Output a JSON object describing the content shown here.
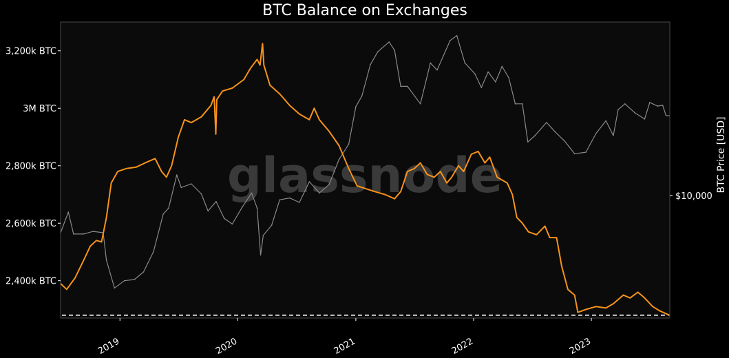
{
  "chart_data": {
    "type": "line",
    "title": "BTC Balance on Exchanges",
    "watermark": "glassnode",
    "colors": {
      "background": "#000000",
      "plot_background": "#0b0b0b",
      "frame": "#4a4a4a",
      "balance": "#f7931a",
      "price": "#8a8a8a",
      "reference_line": "#ffffff",
      "text": "#ffffff",
      "watermark": "#3a3a3a"
    },
    "x_axis": {
      "type": "date",
      "range": [
        "2018-07-01",
        "2023-09-01"
      ],
      "ticks": [
        {
          "label": "2019",
          "date": "2019-01-01"
        },
        {
          "label": "2020",
          "date": "2020-01-01"
        },
        {
          "label": "2021",
          "date": "2021-01-01"
        },
        {
          "label": "2022",
          "date": "2022-01-01"
        },
        {
          "label": "2023",
          "date": "2023-01-01"
        }
      ]
    },
    "y_left": {
      "unit": "BTC",
      "range": [
        2270000,
        3300000
      ],
      "ticks": [
        {
          "label": "2,400k BTC",
          "value": 2400000
        },
        {
          "label": "2,600k BTC",
          "value": 2600000
        },
        {
          "label": "2,800k BTC",
          "value": 2800000
        },
        {
          "label": "3M BTC",
          "value": 3000000
        },
        {
          "label": "3,200k BTC",
          "value": 3200000
        }
      ]
    },
    "y_right": {
      "label": "BTC Price [USD]",
      "scale": "log",
      "range": [
        2300,
        80000
      ],
      "ticks": [
        {
          "label": "$10,000",
          "value": 10000
        }
      ]
    },
    "reference_line": {
      "axis": "left",
      "value": 2280000,
      "style": "dashed"
    },
    "series": [
      {
        "key": "balance",
        "axis": "left",
        "points": [
          [
            "2018-07-01",
            2390000
          ],
          [
            "2018-07-20",
            2370000
          ],
          [
            "2018-08-15",
            2410000
          ],
          [
            "2018-09-10",
            2470000
          ],
          [
            "2018-10-01",
            2520000
          ],
          [
            "2018-10-20",
            2540000
          ],
          [
            "2018-11-05",
            2535000
          ],
          [
            "2018-11-20",
            2620000
          ],
          [
            "2018-12-05",
            2740000
          ],
          [
            "2018-12-25",
            2780000
          ],
          [
            "2019-01-20",
            2790000
          ],
          [
            "2019-02-20",
            2795000
          ],
          [
            "2019-03-20",
            2810000
          ],
          [
            "2019-04-20",
            2825000
          ],
          [
            "2019-05-10",
            2780000
          ],
          [
            "2019-05-25",
            2760000
          ],
          [
            "2019-06-10",
            2800000
          ],
          [
            "2019-07-01",
            2900000
          ],
          [
            "2019-07-20",
            2960000
          ],
          [
            "2019-08-10",
            2950000
          ],
          [
            "2019-09-10",
            2970000
          ],
          [
            "2019-10-10",
            3010000
          ],
          [
            "2019-10-20",
            3040000
          ],
          [
            "2019-10-25",
            2910000
          ],
          [
            "2019-10-28",
            3030000
          ],
          [
            "2019-11-15",
            3060000
          ],
          [
            "2019-12-15",
            3070000
          ],
          [
            "2020-01-20",
            3100000
          ],
          [
            "2020-02-10",
            3140000
          ],
          [
            "2020-03-01",
            3170000
          ],
          [
            "2020-03-10",
            3150000
          ],
          [
            "2020-03-18",
            3225000
          ],
          [
            "2020-03-22",
            3150000
          ],
          [
            "2020-04-10",
            3080000
          ],
          [
            "2020-05-10",
            3050000
          ],
          [
            "2020-06-10",
            3010000
          ],
          [
            "2020-07-10",
            2980000
          ],
          [
            "2020-08-10",
            2960000
          ],
          [
            "2020-08-25",
            3000000
          ],
          [
            "2020-09-10",
            2960000
          ],
          [
            "2020-10-10",
            2920000
          ],
          [
            "2020-11-10",
            2870000
          ],
          [
            "2020-12-10",
            2790000
          ],
          [
            "2021-01-05",
            2730000
          ],
          [
            "2021-02-01",
            2720000
          ],
          [
            "2021-03-01",
            2710000
          ],
          [
            "2021-04-01",
            2700000
          ],
          [
            "2021-05-01",
            2685000
          ],
          [
            "2021-05-20",
            2710000
          ],
          [
            "2021-06-10",
            2780000
          ],
          [
            "2021-07-01",
            2790000
          ],
          [
            "2021-07-20",
            2810000
          ],
          [
            "2021-08-10",
            2770000
          ],
          [
            "2021-09-01",
            2760000
          ],
          [
            "2021-09-20",
            2780000
          ],
          [
            "2021-10-10",
            2740000
          ],
          [
            "2021-10-25",
            2760000
          ],
          [
            "2021-11-15",
            2800000
          ],
          [
            "2021-12-01",
            2780000
          ],
          [
            "2021-12-25",
            2840000
          ],
          [
            "2022-01-15",
            2850000
          ],
          [
            "2022-02-05",
            2810000
          ],
          [
            "2022-02-20",
            2830000
          ],
          [
            "2022-03-15",
            2760000
          ],
          [
            "2022-04-15",
            2740000
          ],
          [
            "2022-05-01",
            2700000
          ],
          [
            "2022-05-15",
            2620000
          ],
          [
            "2022-06-01",
            2600000
          ],
          [
            "2022-06-20",
            2570000
          ],
          [
            "2022-07-15",
            2560000
          ],
          [
            "2022-08-10",
            2590000
          ],
          [
            "2022-08-25",
            2550000
          ],
          [
            "2022-09-15",
            2550000
          ],
          [
            "2022-10-01",
            2450000
          ],
          [
            "2022-10-20",
            2370000
          ],
          [
            "2022-11-10",
            2350000
          ],
          [
            "2022-11-20",
            2290000
          ],
          [
            "2022-12-15",
            2300000
          ],
          [
            "2023-01-15",
            2310000
          ],
          [
            "2023-02-15",
            2305000
          ],
          [
            "2023-03-10",
            2320000
          ],
          [
            "2023-04-10",
            2350000
          ],
          [
            "2023-05-01",
            2340000
          ],
          [
            "2023-05-25",
            2360000
          ],
          [
            "2023-06-15",
            2340000
          ],
          [
            "2023-07-10",
            2310000
          ],
          [
            "2023-08-01",
            2295000
          ],
          [
            "2023-08-31",
            2280000
          ]
        ]
      },
      {
        "key": "price",
        "axis": "right",
        "points": [
          [
            "2018-07-01",
            6400
          ],
          [
            "2018-07-25",
            8200
          ],
          [
            "2018-08-10",
            6300
          ],
          [
            "2018-09-10",
            6300
          ],
          [
            "2018-10-10",
            6500
          ],
          [
            "2018-11-10",
            6400
          ],
          [
            "2018-11-20",
            4600
          ],
          [
            "2018-12-15",
            3300
          ],
          [
            "2019-01-15",
            3600
          ],
          [
            "2019-02-15",
            3650
          ],
          [
            "2019-03-15",
            4000
          ],
          [
            "2019-04-15",
            5100
          ],
          [
            "2019-05-15",
            8000
          ],
          [
            "2019-06-01",
            8600
          ],
          [
            "2019-06-26",
            12800
          ],
          [
            "2019-07-10",
            11000
          ],
          [
            "2019-08-10",
            11500
          ],
          [
            "2019-09-10",
            10200
          ],
          [
            "2019-10-01",
            8300
          ],
          [
            "2019-10-26",
            9300
          ],
          [
            "2019-11-20",
            7600
          ],
          [
            "2019-12-15",
            7100
          ],
          [
            "2020-01-15",
            8700
          ],
          [
            "2020-02-13",
            10300
          ],
          [
            "2020-03-01",
            8600
          ],
          [
            "2020-03-12",
            4900
          ],
          [
            "2020-03-20",
            6200
          ],
          [
            "2020-04-15",
            7000
          ],
          [
            "2020-05-10",
            9500
          ],
          [
            "2020-06-10",
            9700
          ],
          [
            "2020-07-10",
            9200
          ],
          [
            "2020-08-10",
            11800
          ],
          [
            "2020-09-10",
            10300
          ],
          [
            "2020-10-10",
            11400
          ],
          [
            "2020-11-10",
            15400
          ],
          [
            "2020-12-10",
            18500
          ],
          [
            "2021-01-01",
            29000
          ],
          [
            "2021-01-20",
            33000
          ],
          [
            "2021-02-15",
            48000
          ],
          [
            "2021-03-10",
            56000
          ],
          [
            "2021-04-14",
            63000
          ],
          [
            "2021-05-01",
            57000
          ],
          [
            "2021-05-20",
            37000
          ],
          [
            "2021-06-10",
            37000
          ],
          [
            "2021-07-20",
            30000
          ],
          [
            "2021-08-20",
            49000
          ],
          [
            "2021-09-10",
            45000
          ],
          [
            "2021-10-20",
            64000
          ],
          [
            "2021-11-10",
            68000
          ],
          [
            "2021-12-05",
            49000
          ],
          [
            "2022-01-05",
            43000
          ],
          [
            "2022-01-25",
            36500
          ],
          [
            "2022-02-15",
            44000
          ],
          [
            "2022-03-10",
            39000
          ],
          [
            "2022-03-30",
            47000
          ],
          [
            "2022-04-20",
            41000
          ],
          [
            "2022-05-10",
            30000
          ],
          [
            "2022-06-01",
            30000
          ],
          [
            "2022-06-18",
            19000
          ],
          [
            "2022-07-10",
            20500
          ],
          [
            "2022-08-15",
            24000
          ],
          [
            "2022-09-10",
            21500
          ],
          [
            "2022-10-10",
            19200
          ],
          [
            "2022-11-10",
            16500
          ],
          [
            "2022-12-15",
            16800
          ],
          [
            "2023-01-15",
            21000
          ],
          [
            "2023-02-15",
            24500
          ],
          [
            "2023-03-10",
            20500
          ],
          [
            "2023-03-25",
            28000
          ],
          [
            "2023-04-15",
            30000
          ],
          [
            "2023-05-15",
            27000
          ],
          [
            "2023-06-15",
            25000
          ],
          [
            "2023-07-01",
            30500
          ],
          [
            "2023-07-25",
            29200
          ],
          [
            "2023-08-10",
            29500
          ],
          [
            "2023-08-20",
            26100
          ],
          [
            "2023-08-31",
            26000
          ]
        ]
      }
    ]
  }
}
